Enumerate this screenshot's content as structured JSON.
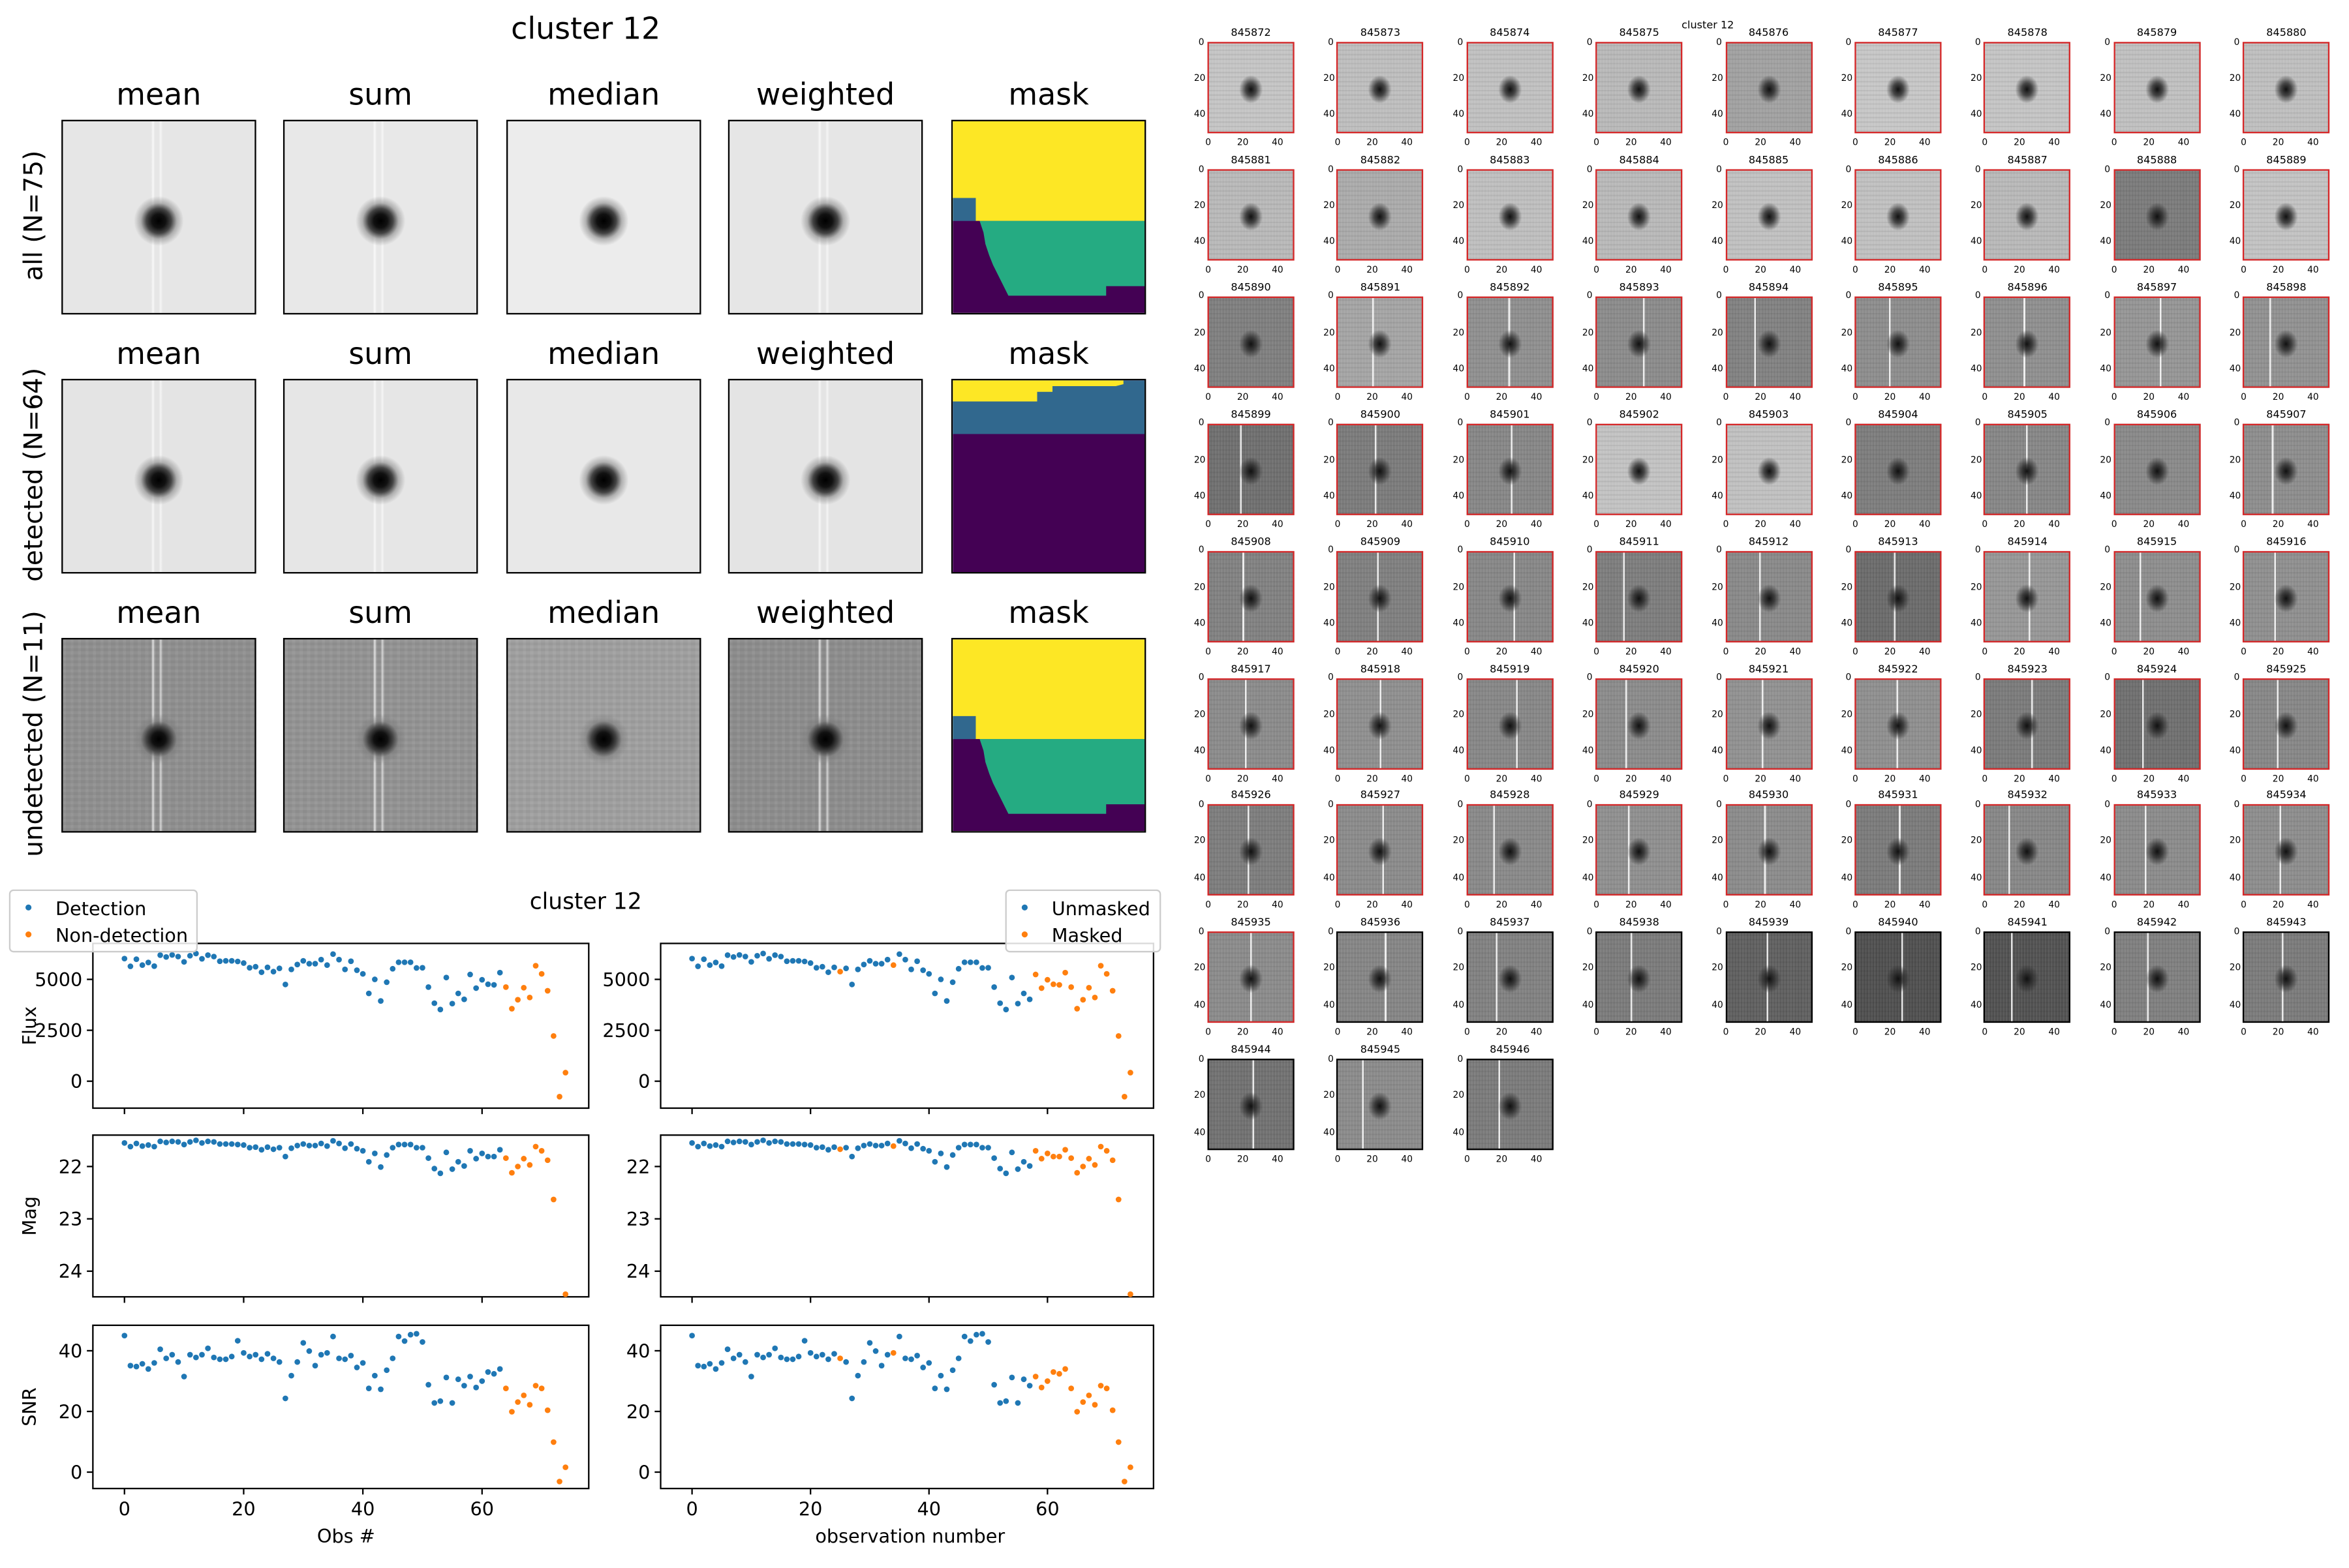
{
  "top": {
    "title": "cluster 12",
    "columns": [
      "mean",
      "sum",
      "median",
      "weighted",
      "mask"
    ],
    "rows": [
      "all (N=75)",
      "detected (N=64)",
      "undetected (N=11)"
    ],
    "mask_colors": {
      "yellow": "#fde725",
      "teal": "#25ab82",
      "blue": "#31688e",
      "purple": "#440154"
    }
  },
  "thumbs": {
    "title": "cluster 12",
    "ticks": [
      "0",
      "20",
      "40"
    ],
    "detected_border": "#d62728",
    "items": [
      {
        "id": "845872",
        "detected": true,
        "tone": "#c4c4c4",
        "streak": false
      },
      {
        "id": "845873",
        "detected": true,
        "tone": "#bdbdbd",
        "streak": false
      },
      {
        "id": "845874",
        "detected": true,
        "tone": "#c0c0c0",
        "streak": false
      },
      {
        "id": "845875",
        "detected": true,
        "tone": "#b8b8b8",
        "streak": false
      },
      {
        "id": "845876",
        "detected": true,
        "tone": "#a0a0a0",
        "streak": false
      },
      {
        "id": "845877",
        "detected": true,
        "tone": "#c6c6c6",
        "streak": false
      },
      {
        "id": "845878",
        "detected": true,
        "tone": "#c4c4c4",
        "streak": false
      },
      {
        "id": "845879",
        "detected": true,
        "tone": "#bfbfbf",
        "streak": false
      },
      {
        "id": "845880",
        "detected": true,
        "tone": "#bebebe",
        "streak": false
      },
      {
        "id": "845881",
        "detected": true,
        "tone": "#b8b8b8",
        "streak": false
      },
      {
        "id": "845882",
        "detected": true,
        "tone": "#aaaaaa",
        "streak": false
      },
      {
        "id": "845883",
        "detected": true,
        "tone": "#bebebe",
        "streak": false
      },
      {
        "id": "845884",
        "detected": true,
        "tone": "#b8b8b8",
        "streak": false
      },
      {
        "id": "845885",
        "detected": true,
        "tone": "#c0c0c0",
        "streak": false
      },
      {
        "id": "845886",
        "detected": true,
        "tone": "#c0c0c0",
        "streak": false
      },
      {
        "id": "845887",
        "detected": true,
        "tone": "#b8b8b8",
        "streak": false
      },
      {
        "id": "845888",
        "detected": true,
        "tone": "#7a7a7a",
        "streak": false
      },
      {
        "id": "845889",
        "detected": true,
        "tone": "#c2c2c2",
        "streak": false
      },
      {
        "id": "845890",
        "detected": true,
        "tone": "#7e7e7e",
        "streak": false
      },
      {
        "id": "845891",
        "detected": true,
        "tone": "#a4a4a4",
        "streak": true
      },
      {
        "id": "845892",
        "detected": true,
        "tone": "#8e8e8e",
        "streak": true
      },
      {
        "id": "845893",
        "detected": true,
        "tone": "#8a8a8a",
        "streak": true
      },
      {
        "id": "845894",
        "detected": true,
        "tone": "#808080",
        "streak": true
      },
      {
        "id": "845895",
        "detected": true,
        "tone": "#8c8c8c",
        "streak": true
      },
      {
        "id": "845896",
        "detected": true,
        "tone": "#8e8e8e",
        "streak": true
      },
      {
        "id": "845897",
        "detected": true,
        "tone": "#949494",
        "streak": true
      },
      {
        "id": "845898",
        "detected": true,
        "tone": "#909090",
        "streak": true
      },
      {
        "id": "845899",
        "detected": true,
        "tone": "#6e6e6e",
        "streak": true
      },
      {
        "id": "845900",
        "detected": true,
        "tone": "#7a7a7a",
        "streak": true
      },
      {
        "id": "845901",
        "detected": true,
        "tone": "#858585",
        "streak": true
      },
      {
        "id": "845902",
        "detected": true,
        "tone": "#c2c2c2",
        "streak": false
      },
      {
        "id": "845903",
        "detected": true,
        "tone": "#c0c0c0",
        "streak": false
      },
      {
        "id": "845904",
        "detected": true,
        "tone": "#7c7c7c",
        "streak": false
      },
      {
        "id": "845905",
        "detected": true,
        "tone": "#858585",
        "streak": true
      },
      {
        "id": "845906",
        "detected": true,
        "tone": "#888888",
        "streak": false
      },
      {
        "id": "845907",
        "detected": true,
        "tone": "#8c8c8c",
        "streak": true
      },
      {
        "id": "845908",
        "detected": true,
        "tone": "#808080",
        "streak": true
      },
      {
        "id": "845909",
        "detected": true,
        "tone": "#7e7e7e",
        "streak": true
      },
      {
        "id": "845910",
        "detected": true,
        "tone": "#868686",
        "streak": true
      },
      {
        "id": "845911",
        "detected": true,
        "tone": "#7c7c7c",
        "streak": true
      },
      {
        "id": "845912",
        "detected": true,
        "tone": "#888888",
        "streak": true
      },
      {
        "id": "845913",
        "detected": true,
        "tone": "#6a6a6a",
        "streak": true
      },
      {
        "id": "845914",
        "detected": true,
        "tone": "#969696",
        "streak": true
      },
      {
        "id": "845915",
        "detected": true,
        "tone": "#8c8c8c",
        "streak": true
      },
      {
        "id": "845916",
        "detected": true,
        "tone": "#8e8e8e",
        "streak": true
      },
      {
        "id": "845917",
        "detected": true,
        "tone": "#8a8a8a",
        "streak": true
      },
      {
        "id": "845918",
        "detected": true,
        "tone": "#8e8e8e",
        "streak": true
      },
      {
        "id": "845919",
        "detected": true,
        "tone": "#868686",
        "streak": true
      },
      {
        "id": "845920",
        "detected": true,
        "tone": "#8a8a8a",
        "streak": true
      },
      {
        "id": "845921",
        "detected": true,
        "tone": "#909090",
        "streak": true
      },
      {
        "id": "845922",
        "detected": true,
        "tone": "#8e8e8e",
        "streak": true
      },
      {
        "id": "845923",
        "detected": true,
        "tone": "#7a7a7a",
        "streak": true
      },
      {
        "id": "845924",
        "detected": true,
        "tone": "#6e6e6e",
        "streak": true
      },
      {
        "id": "845925",
        "detected": true,
        "tone": "#868686",
        "streak": true
      },
      {
        "id": "845926",
        "detected": true,
        "tone": "#7c7c7c",
        "streak": true
      },
      {
        "id": "845927",
        "detected": true,
        "tone": "#8a8a8a",
        "streak": true
      },
      {
        "id": "845928",
        "detected": true,
        "tone": "#888888",
        "streak": true
      },
      {
        "id": "845929",
        "detected": true,
        "tone": "#8e8e8e",
        "streak": true
      },
      {
        "id": "845930",
        "detected": true,
        "tone": "#8a8a8a",
        "streak": true
      },
      {
        "id": "845931",
        "detected": true,
        "tone": "#7a7a7a",
        "streak": true
      },
      {
        "id": "845932",
        "detected": true,
        "tone": "#868686",
        "streak": true
      },
      {
        "id": "845933",
        "detected": true,
        "tone": "#8a8a8a",
        "streak": true
      },
      {
        "id": "845934",
        "detected": true,
        "tone": "#8c8c8c",
        "streak": true
      },
      {
        "id": "845935",
        "detected": true,
        "tone": "#8a8a8a",
        "streak": true
      },
      {
        "id": "845936",
        "detected": false,
        "tone": "#848484",
        "streak": true
      },
      {
        "id": "845937",
        "detected": false,
        "tone": "#808080",
        "streak": true
      },
      {
        "id": "845938",
        "detected": false,
        "tone": "#7a7a7a",
        "streak": true
      },
      {
        "id": "845939",
        "detected": false,
        "tone": "#5e5e5e",
        "streak": true
      },
      {
        "id": "845940",
        "detected": false,
        "tone": "#4e4e4e",
        "streak": true
      },
      {
        "id": "845941",
        "detected": false,
        "tone": "#505050",
        "streak": true
      },
      {
        "id": "845942",
        "detected": false,
        "tone": "#7e7e7e",
        "streak": true
      },
      {
        "id": "845943",
        "detected": false,
        "tone": "#7a7a7a",
        "streak": true
      },
      {
        "id": "845944",
        "detected": false,
        "tone": "#707070",
        "streak": true
      },
      {
        "id": "845945",
        "detected": false,
        "tone": "#8a8a8a",
        "streak": true
      },
      {
        "id": "845946",
        "detected": false,
        "tone": "#7a7a7a",
        "streak": true
      }
    ]
  },
  "chart_data": {
    "type": "scatter",
    "title": "cluster 12",
    "colors": {
      "blue": "#1f77b4",
      "orange": "#ff7f0e"
    },
    "x": [
      0,
      1,
      2,
      3,
      4,
      5,
      6,
      7,
      8,
      9,
      10,
      11,
      12,
      13,
      14,
      15,
      16,
      17,
      18,
      19,
      20,
      21,
      22,
      23,
      24,
      25,
      26,
      27,
      28,
      29,
      30,
      31,
      32,
      33,
      34,
      35,
      36,
      37,
      38,
      39,
      40,
      41,
      42,
      43,
      44,
      45,
      46,
      47,
      48,
      49,
      50,
      51,
      52,
      53,
      54,
      55,
      56,
      57,
      58,
      59,
      60,
      61,
      62,
      63,
      64,
      65,
      66,
      67,
      68,
      69,
      70,
      71,
      72,
      73,
      74
    ],
    "xlim": [
      -5.3,
      77.9
    ],
    "xticks": [
      0,
      20,
      40,
      60
    ],
    "grid": false,
    "panels": [
      {
        "ylabel": "Flux",
        "ylim": [
          -1323,
          6765
        ],
        "yticks": [
          0,
          2500,
          5000
        ],
        "inverted": false,
        "values": [
          6020,
          5640,
          5990,
          5700,
          5830,
          5650,
          6190,
          6100,
          6200,
          6120,
          5860,
          6160,
          6270,
          6010,
          6190,
          6120,
          5890,
          5910,
          5910,
          5880,
          5800,
          5570,
          5620,
          5350,
          5590,
          5380,
          5540,
          4750,
          5490,
          5730,
          5910,
          5770,
          5770,
          5970,
          5700,
          6240,
          5970,
          5490,
          5890,
          5450,
          5270,
          4310,
          5000,
          3940,
          4860,
          5520,
          5840,
          5840,
          5840,
          5560,
          5570,
          4620,
          3830,
          3520,
          5090,
          3810,
          4310,
          4020,
          5240,
          4570,
          4980,
          4760,
          4730,
          5330,
          4620,
          3560,
          4000,
          4590,
          4110,
          5670,
          5270,
          4440,
          2220,
          -760,
          420
        ]
      },
      {
        "ylabel": "Mag",
        "ylim": [
          24.49,
          21.4
        ],
        "yticks": [
          22,
          23,
          24
        ],
        "inverted": true,
        "values": [
          21.55,
          21.62,
          21.56,
          21.61,
          21.59,
          21.62,
          21.52,
          21.54,
          21.52,
          21.53,
          21.58,
          21.53,
          21.5,
          21.55,
          21.52,
          21.53,
          21.57,
          21.57,
          21.57,
          21.58,
          21.59,
          21.64,
          21.63,
          21.68,
          21.63,
          21.67,
          21.64,
          21.81,
          21.65,
          21.6,
          21.57,
          21.6,
          21.6,
          21.56,
          21.61,
          21.51,
          21.56,
          21.65,
          21.57,
          21.66,
          21.7,
          21.91,
          21.75,
          22.01,
          21.78,
          21.64,
          21.58,
          21.58,
          21.58,
          21.64,
          21.64,
          21.84,
          22.04,
          22.13,
          21.73,
          22.05,
          21.91,
          21.99,
          21.7,
          21.85,
          21.75,
          21.81,
          21.81,
          21.68,
          21.84,
          22.12,
          22.0,
          21.85,
          21.97,
          21.62,
          21.7,
          21.88,
          22.63,
          null,
          24.44
        ]
      },
      {
        "ylabel": "SNR",
        "ylim": [
          -5.4,
          48.4
        ],
        "yticks": [
          0,
          20,
          40
        ],
        "inverted": false,
        "values": [
          45.0,
          35.1,
          34.8,
          35.7,
          34.0,
          36.0,
          40.5,
          37.5,
          38.7,
          36.3,
          31.5,
          38.7,
          37.8,
          38.7,
          40.8,
          37.8,
          37.2,
          37.2,
          38.1,
          43.3,
          39.3,
          38.1,
          38.7,
          37.2,
          39.0,
          37.5,
          36.3,
          24.3,
          31.8,
          36.3,
          42.6,
          39.9,
          35.1,
          38.7,
          39.3,
          44.7,
          37.5,
          37.2,
          38.4,
          34.5,
          36.0,
          27.6,
          31.8,
          27.3,
          33.6,
          37.5,
          44.7,
          43.2,
          45.3,
          45.6,
          42.9,
          28.8,
          22.8,
          23.4,
          31.2,
          22.8,
          30.6,
          28.5,
          31.5,
          27.9,
          30.0,
          33.0,
          32.4,
          34.0,
          27.6,
          19.9,
          23.1,
          25.3,
          22.2,
          28.5,
          27.6,
          20.4,
          9.9,
          -3.1,
          1.6
        ]
      }
    ],
    "left": {
      "xlabel": "Obs #",
      "legend": [
        "Detection",
        "Non-detection"
      ],
      "legend_position": "upper-left",
      "orange_indices": [
        64,
        65,
        66,
        67,
        68,
        69,
        70,
        71,
        72,
        73,
        74
      ]
    },
    "right": {
      "xlabel": "observation number",
      "legend": [
        "Unmasked",
        "Masked"
      ],
      "legend_position": "upper-right",
      "orange_indices": [
        25,
        34,
        58,
        59,
        60,
        61,
        62,
        63,
        64,
        65,
        66,
        67,
        68,
        69,
        70,
        71,
        72,
        73,
        74
      ]
    }
  }
}
